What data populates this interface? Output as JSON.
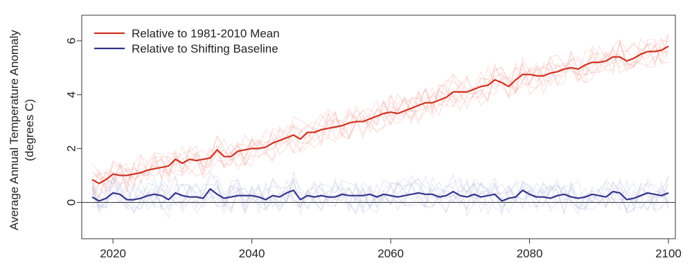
{
  "chart_data": {
    "type": "line",
    "title": "",
    "xlabel": "",
    "ylabel_lines": [
      "Average Annual Temperature Anomaly",
      "(degrees C)"
    ],
    "xlim": [
      2015.5,
      2101
    ],
    "ylim": [
      -1.35,
      6.95
    ],
    "x_ticks": [
      2020,
      2040,
      2060,
      2080,
      2100
    ],
    "y_ticks": [
      0,
      2,
      4,
      6
    ],
    "reference_line_y": 0,
    "grid": false,
    "legend_position": "top-left",
    "series": [
      {
        "name": "Relative to 1981-2010 Mean",
        "color": "#cc3322",
        "ensemble_color": "#f2a099",
        "x": [
          2017,
          2018,
          2019,
          2020,
          2021,
          2022,
          2023,
          2024,
          2025,
          2026,
          2027,
          2028,
          2029,
          2030,
          2031,
          2032,
          2033,
          2034,
          2035,
          2036,
          2037,
          2038,
          2039,
          2040,
          2041,
          2042,
          2043,
          2044,
          2045,
          2046,
          2047,
          2048,
          2049,
          2050,
          2051,
          2052,
          2053,
          2054,
          2055,
          2056,
          2057,
          2058,
          2059,
          2060,
          2061,
          2062,
          2063,
          2064,
          2065,
          2066,
          2067,
          2068,
          2069,
          2070,
          2071,
          2072,
          2073,
          2074,
          2075,
          2076,
          2077,
          2078,
          2079,
          2080,
          2081,
          2082,
          2083,
          2084,
          2085,
          2086,
          2087,
          2088,
          2089,
          2090,
          2091,
          2092,
          2093,
          2094,
          2095,
          2096,
          2097,
          2098,
          2099,
          2100
        ],
        "values": [
          0.85,
          0.7,
          0.85,
          1.05,
          1.0,
          1.0,
          1.05,
          1.1,
          1.2,
          1.25,
          1.3,
          1.35,
          1.6,
          1.45,
          1.6,
          1.55,
          1.6,
          1.65,
          1.95,
          1.7,
          1.7,
          1.9,
          1.95,
          2.0,
          2.0,
          2.05,
          2.2,
          2.3,
          2.4,
          2.5,
          2.35,
          2.6,
          2.6,
          2.7,
          2.75,
          2.8,
          2.85,
          2.95,
          3.0,
          3.0,
          3.1,
          3.2,
          3.3,
          3.35,
          3.3,
          3.4,
          3.5,
          3.6,
          3.7,
          3.7,
          3.8,
          3.9,
          4.1,
          4.1,
          4.1,
          4.2,
          4.3,
          4.35,
          4.55,
          4.45,
          4.3,
          4.55,
          4.75,
          4.75,
          4.7,
          4.7,
          4.8,
          4.85,
          4.95,
          5.0,
          4.95,
          5.1,
          5.2,
          5.2,
          5.25,
          5.4,
          5.4,
          5.25,
          5.35,
          5.5,
          5.6,
          5.6,
          5.65,
          5.8
        ]
      },
      {
        "name": "Relative to Shifting Baseline",
        "color": "#33338a",
        "ensemble_color": "#b5b5dd",
        "x": [
          2017,
          2018,
          2019,
          2020,
          2021,
          2022,
          2023,
          2024,
          2025,
          2026,
          2027,
          2028,
          2029,
          2030,
          2031,
          2032,
          2033,
          2034,
          2035,
          2036,
          2037,
          2038,
          2039,
          2040,
          2041,
          2042,
          2043,
          2044,
          2045,
          2046,
          2047,
          2048,
          2049,
          2050,
          2051,
          2052,
          2053,
          2054,
          2055,
          2056,
          2057,
          2058,
          2059,
          2060,
          2061,
          2062,
          2063,
          2064,
          2065,
          2066,
          2067,
          2068,
          2069,
          2070,
          2071,
          2072,
          2073,
          2074,
          2075,
          2076,
          2077,
          2078,
          2079,
          2080,
          2081,
          2082,
          2083,
          2084,
          2085,
          2086,
          2087,
          2088,
          2089,
          2090,
          2091,
          2092,
          2093,
          2094,
          2095,
          2096,
          2097,
          2098,
          2099,
          2100
        ],
        "values": [
          0.2,
          0.05,
          0.15,
          0.35,
          0.3,
          0.1,
          0.1,
          0.15,
          0.25,
          0.3,
          0.25,
          0.1,
          0.35,
          0.25,
          0.2,
          0.2,
          0.15,
          0.5,
          0.3,
          0.15,
          0.2,
          0.25,
          0.25,
          0.25,
          0.2,
          0.1,
          0.25,
          0.2,
          0.35,
          0.45,
          0.1,
          0.25,
          0.2,
          0.25,
          0.2,
          0.2,
          0.3,
          0.25,
          0.25,
          0.25,
          0.3,
          0.2,
          0.3,
          0.25,
          0.2,
          0.25,
          0.3,
          0.35,
          0.3,
          0.3,
          0.2,
          0.25,
          0.4,
          0.25,
          0.2,
          0.3,
          0.2,
          0.25,
          0.3,
          0.05,
          0.15,
          0.2,
          0.45,
          0.3,
          0.2,
          0.2,
          0.15,
          0.25,
          0.3,
          0.2,
          0.15,
          0.2,
          0.3,
          0.25,
          0.2,
          0.4,
          0.35,
          0.1,
          0.15,
          0.25,
          0.35,
          0.3,
          0.25,
          0.35
        ]
      }
    ]
  }
}
